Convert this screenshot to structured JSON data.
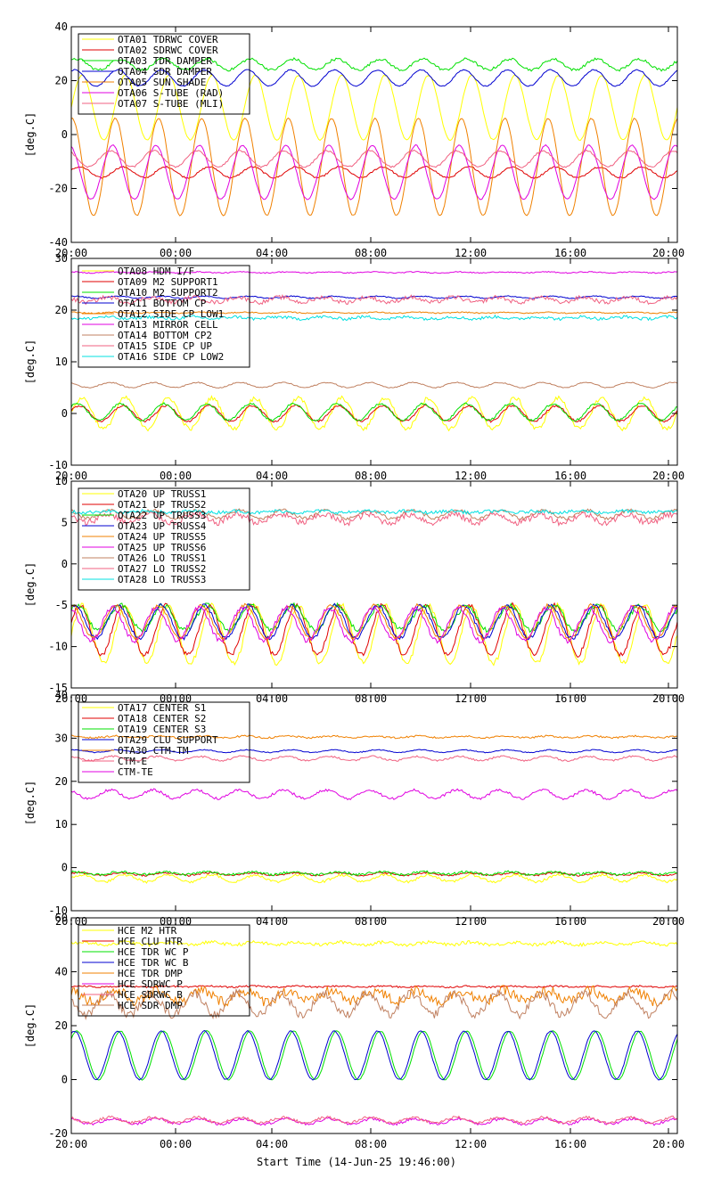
{
  "x_ticks": [
    "20:00",
    "00:00",
    "04:00",
    "08:00",
    "12:00",
    "16:00",
    "20:00"
  ],
  "footer": "Start Time (14-Jun-25 19:46:00)",
  "colors": {
    "yellow": "#ffff00",
    "red": "#e00000",
    "green": "#00e000",
    "blue": "#0000d0",
    "orange": "#f08000",
    "magenta": "#e000e0",
    "pink": "#f06080",
    "cyan": "#00e0e0",
    "brown": "#c08060",
    "darkred": "#a00000"
  },
  "chart_data": [
    {
      "type": "line",
      "ylabel": "[deg.C]",
      "ylim": [
        -40,
        40
      ],
      "yticks": [
        -40,
        -20,
        0,
        20,
        40
      ],
      "legend_placement": "top-left",
      "series": [
        {
          "name": "OTA01 TDRWC COVER",
          "color": "yellow",
          "base": 10,
          "amp": 12,
          "noise": 0.2
        },
        {
          "name": "OTA02 SDRWC COVER",
          "color": "red",
          "base": -14,
          "amp": 2,
          "noise": 0.3
        },
        {
          "name": "OTA03 TDR DAMPER",
          "color": "green",
          "base": 26,
          "amp": 2,
          "noise": 0.5
        },
        {
          "name": "OTA04 SDR DAMPER",
          "color": "blue",
          "base": 21,
          "amp": 3,
          "noise": 0.2
        },
        {
          "name": "OTA05 SUN SHADE",
          "color": "orange",
          "base": -12,
          "amp": 18,
          "noise": 0.2
        },
        {
          "name": "OTA06 S-TUBE (RAD)",
          "color": "magenta",
          "base": -14,
          "amp": 10,
          "noise": 0.2
        },
        {
          "name": "OTA07 S-TUBE (MLI)",
          "color": "pink",
          "base": -9,
          "amp": 3,
          "noise": 0.3
        }
      ]
    },
    {
      "type": "line",
      "ylabel": "[deg.C]",
      "ylim": [
        -10,
        30
      ],
      "yticks": [
        -10,
        0,
        10,
        20,
        30
      ],
      "legend_placement": "top-left",
      "series": [
        {
          "name": "OTA08 HDM I/F",
          "color": "yellow",
          "base": 0,
          "amp": 3,
          "noise": 0.4
        },
        {
          "name": "OTA09 M2 SUPPORT1",
          "color": "red",
          "base": 0,
          "amp": 1.5,
          "noise": 0.2
        },
        {
          "name": "OTA10 M2 SUPPORT2",
          "color": "green",
          "base": 0.3,
          "amp": 1.6,
          "noise": 0.2
        },
        {
          "name": "OTA11 BOTTOM CP",
          "color": "blue",
          "base": 22.5,
          "amp": 0.2,
          "noise": 0.1
        },
        {
          "name": "OTA12 SIDE CP LOW1",
          "color": "orange",
          "base": 19.5,
          "amp": 0.1,
          "noise": 0.1
        },
        {
          "name": "OTA13 MIRROR CELL",
          "color": "magenta",
          "base": 27.3,
          "amp": 0.1,
          "noise": 0.1
        },
        {
          "name": "OTA14 BOTTOM CP2",
          "color": "brown",
          "base": 5.5,
          "amp": 0.5,
          "noise": 0.1
        },
        {
          "name": "OTA15 SIDE CP UP",
          "color": "pink",
          "base": 22,
          "amp": 0.5,
          "noise": 0.4
        },
        {
          "name": "OTA16 SIDE CP LOW2",
          "color": "cyan",
          "base": 18.5,
          "amp": 0.2,
          "noise": 0.3
        }
      ]
    },
    {
      "type": "line",
      "ylabel": "[deg.C]",
      "ylim": [
        -15,
        10
      ],
      "yticks": [
        -15,
        -10,
        -5,
        0,
        5,
        10
      ],
      "legend_placement": "top-left",
      "series": [
        {
          "name": "OTA20 UP TRUSS1",
          "color": "yellow",
          "base": -8.5,
          "amp": 3.5,
          "noise": 0.3
        },
        {
          "name": "OTA21 UP TRUSS2",
          "color": "red",
          "base": -8,
          "amp": 3,
          "noise": 0.3
        },
        {
          "name": "OTA22 UP TRUSS3",
          "color": "green",
          "base": -6.5,
          "amp": 1.5,
          "noise": 0.3
        },
        {
          "name": "OTA23 UP TRUSS4",
          "color": "blue",
          "base": -7,
          "amp": 2,
          "noise": 0.2
        },
        {
          "name": "OTA24 UP TRUSS5",
          "color": "orange",
          "base": -7,
          "amp": 2,
          "noise": 0.2
        },
        {
          "name": "OTA25 UP TRUSS6",
          "color": "magenta",
          "base": -7.3,
          "amp": 2,
          "noise": 0.3
        },
        {
          "name": "OTA26 LO TRUSS1",
          "color": "brown",
          "base": 6,
          "amp": 0.5,
          "noise": 0.2
        },
        {
          "name": "OTA27 LO TRUSS2",
          "color": "pink",
          "base": 5.5,
          "amp": 0.5,
          "noise": 0.4
        },
        {
          "name": "OTA28 LO TRUSS3",
          "color": "cyan",
          "base": 6.3,
          "amp": 0.1,
          "noise": 0.2
        }
      ]
    },
    {
      "type": "line",
      "ylabel": "[deg.C]",
      "ylim": [
        -10,
        40
      ],
      "yticks": [
        -10,
        0,
        10,
        20,
        30,
        40
      ],
      "legend_placement": "top-left",
      "series": [
        {
          "name": "OTA17 CENTER S1",
          "color": "yellow",
          "base": -2.5,
          "amp": 0.8,
          "noise": 0.3
        },
        {
          "name": "OTA18 CENTER S2",
          "color": "red",
          "base": -1.5,
          "amp": 0.3,
          "noise": 0.2
        },
        {
          "name": "OTA19 CENTER S3",
          "color": "green",
          "base": -1.3,
          "amp": 0.3,
          "noise": 0.3
        },
        {
          "name": "OTA29 CLU SUPPORT",
          "color": "blue",
          "base": 27,
          "amp": 0.3,
          "noise": 0.1
        },
        {
          "name": "OTA30 CTM-TM",
          "color": "orange",
          "base": 30.3,
          "amp": 0.2,
          "noise": 0.2
        },
        {
          "name": "CTM-E",
          "color": "pink",
          "base": 25.3,
          "amp": 0.5,
          "noise": 0.2
        },
        {
          "name": "CTM-TE",
          "color": "magenta",
          "base": 17,
          "amp": 1,
          "noise": 0.3
        }
      ]
    },
    {
      "type": "line",
      "ylabel": "[deg.C]",
      "ylim": [
        -20,
        60
      ],
      "yticks": [
        -20,
        0,
        20,
        40,
        60
      ],
      "legend_placement": "top-left",
      "series": [
        {
          "name": "HCE M2 HTR",
          "color": "yellow",
          "base": 50.5,
          "amp": 0.5,
          "noise": 0.6
        },
        {
          "name": "HCE CLU HTR",
          "color": "red",
          "base": 34.5,
          "amp": 0.2,
          "noise": 0.3
        },
        {
          "name": "HCE TDR WC P",
          "color": "green",
          "base": 9,
          "amp": 9,
          "noise": 0.2
        },
        {
          "name": "HCE TDR WC B",
          "color": "blue",
          "base": 9,
          "amp": 9,
          "noise": 0.2
        },
        {
          "name": "HCE TDR DMP",
          "color": "orange",
          "base": 31,
          "amp": 2,
          "noise": 2
        },
        {
          "name": "HCE SDRWC P",
          "color": "magenta",
          "base": -15.5,
          "amp": 1,
          "noise": 0.5
        },
        {
          "name": "HCE SDRWC B",
          "color": "pink",
          "base": -15,
          "amp": 1,
          "noise": 0.5
        },
        {
          "name": "HCE SDR DMP",
          "color": "brown",
          "base": 28,
          "amp": 4,
          "noise": 1.5
        }
      ]
    }
  ]
}
